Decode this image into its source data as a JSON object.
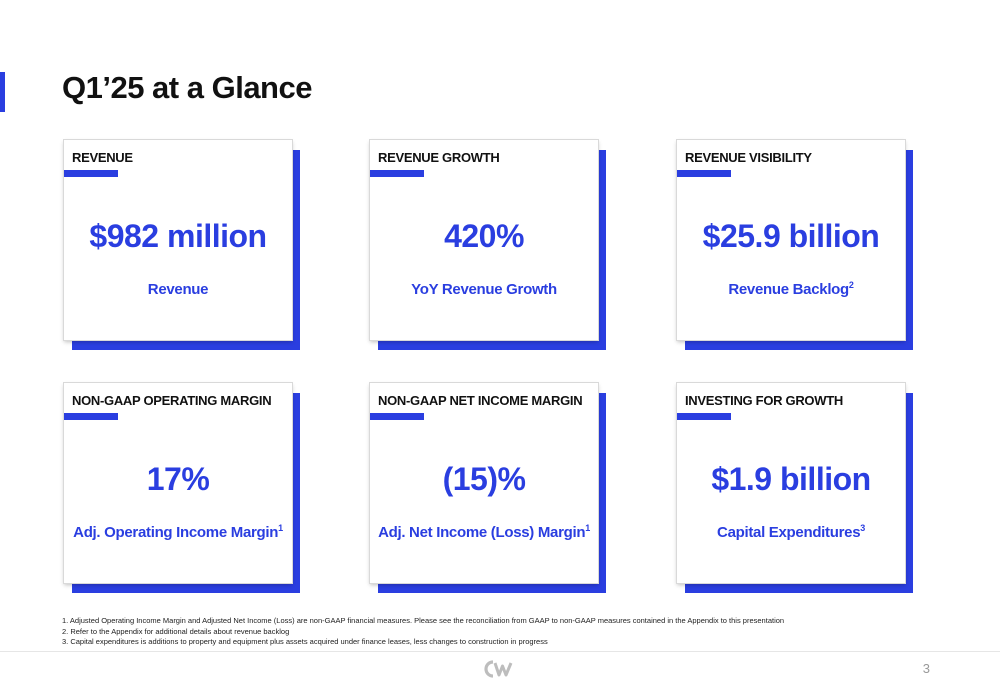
{
  "title": "Q1’25 at a Glance",
  "accent_color": "#2a3ee0",
  "cards": [
    {
      "label": "REVENUE",
      "value": "$982 million",
      "sub": "Revenue",
      "sup": ""
    },
    {
      "label": "REVENUE GROWTH",
      "value": "420%",
      "sub": "YoY Revenue Growth",
      "sup": ""
    },
    {
      "label": "REVENUE VISIBILITY",
      "value": "$25.9 billion",
      "sub": "Revenue Backlog",
      "sup": "2"
    },
    {
      "label": "NON-GAAP OPERATING MARGIN",
      "value": "17%",
      "sub": "Adj. Operating Income Margin",
      "sup": "1"
    },
    {
      "label": "NON-GAAP NET INCOME MARGIN",
      "value": "(15)%",
      "sub": "Adj. Net Income (Loss) Margin",
      "sup": "1"
    },
    {
      "label": "INVESTING FOR GROWTH",
      "value": "$1.9 billion",
      "sub": "Capital Expenditures",
      "sup": "3"
    }
  ],
  "footnotes": [
    "1. Adjusted Operating Income Margin and Adjusted Net Income (Loss)  are non-GAAP financial measures. Please see the reconciliation from GAAP to non-GAAP measures contained in the Appendix to this presentation",
    "2. Refer to the Appendix for additional details about revenue backlog",
    "3. Capital expenditures is additions to property and equipment plus assets acquired under finance leases, less changes to construction in progress"
  ],
  "page_number": "3",
  "logo_icon": "cw-logo-icon"
}
